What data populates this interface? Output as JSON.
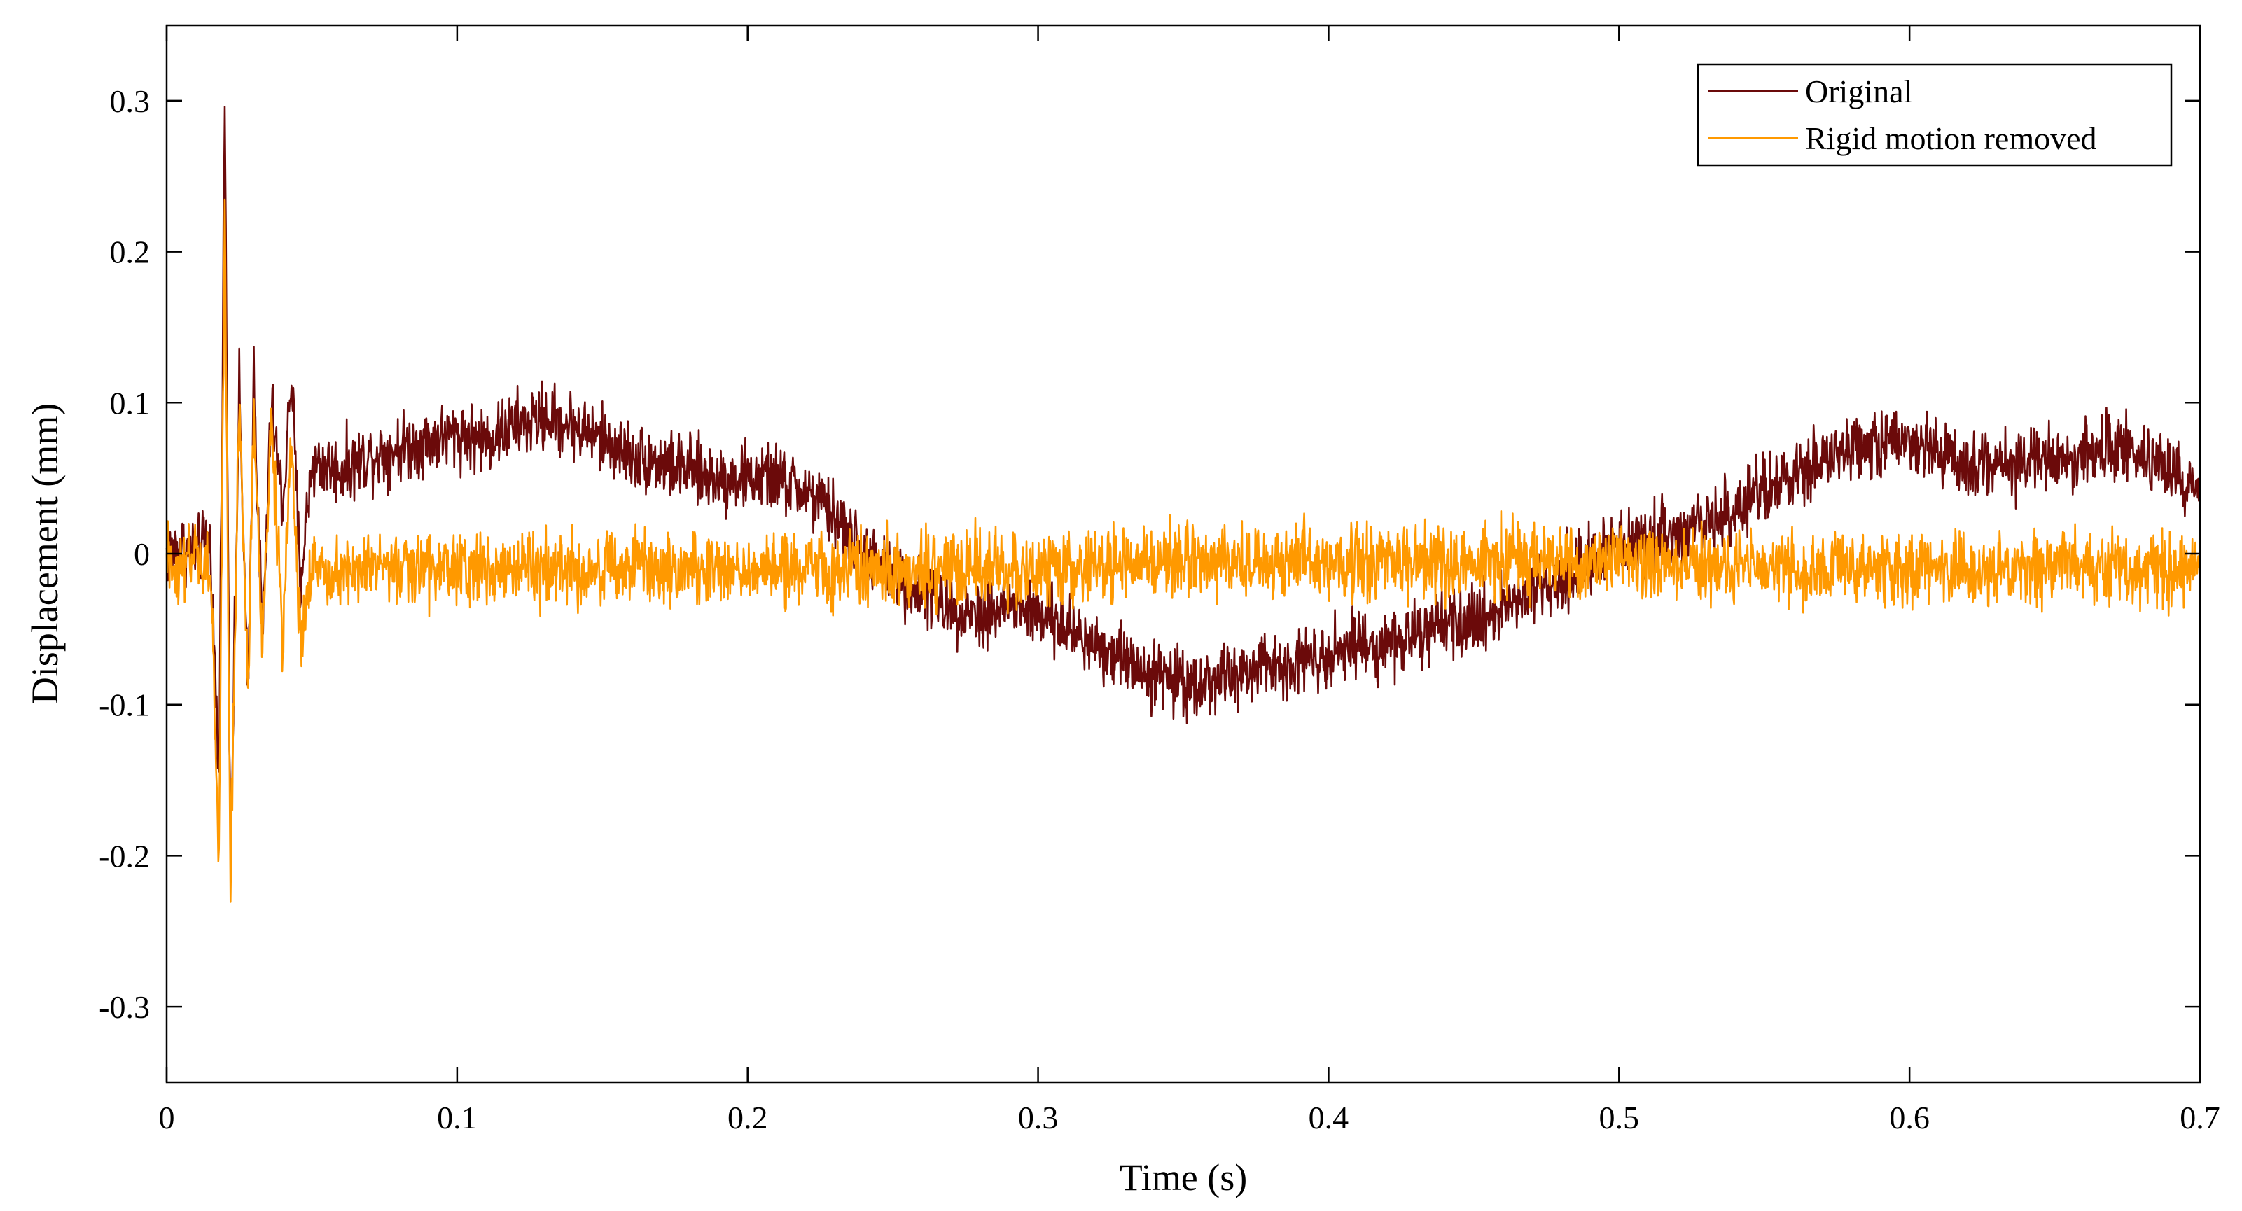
{
  "chart_data": {
    "type": "line",
    "title": "",
    "xlabel": "Time (s)",
    "ylabel": "Displacement (mm)",
    "xlim": [
      0,
      0.7
    ],
    "ylim": [
      -0.35,
      0.35
    ],
    "xticks": [
      0,
      0.1,
      0.2,
      0.3,
      0.4,
      0.5,
      0.6,
      0.7
    ],
    "xtick_labels": [
      "0",
      "0.1",
      "0.2",
      "0.3",
      "0.4",
      "0.5",
      "0.6",
      "0.7"
    ],
    "yticks": [
      0.3,
      0.2,
      0.1,
      0,
      -0.1,
      -0.2,
      -0.3
    ],
    "ytick_labels": [
      "0.3",
      "0.2",
      "0.1",
      "0",
      "-0.1",
      "-0.2",
      "-0.3"
    ],
    "grid": false,
    "legend_position": "top-right",
    "series": [
      {
        "name": "Original",
        "color": "#6b0a0a",
        "x": [
          0,
          0.005,
          0.01,
          0.015,
          0.018,
          0.02,
          0.022,
          0.025,
          0.028,
          0.03,
          0.033,
          0.036,
          0.04,
          0.043,
          0.046,
          0.05,
          0.06,
          0.07,
          0.08,
          0.09,
          0.1,
          0.11,
          0.12,
          0.13,
          0.14,
          0.15,
          0.16,
          0.17,
          0.18,
          0.19,
          0.2,
          0.21,
          0.22,
          0.23,
          0.24,
          0.25,
          0.26,
          0.27,
          0.28,
          0.29,
          0.3,
          0.31,
          0.32,
          0.33,
          0.34,
          0.35,
          0.36,
          0.37,
          0.38,
          0.39,
          0.4,
          0.41,
          0.42,
          0.43,
          0.44,
          0.45,
          0.46,
          0.47,
          0.48,
          0.49,
          0.5,
          0.51,
          0.52,
          0.53,
          0.54,
          0.55,
          0.56,
          0.57,
          0.58,
          0.59,
          0.6,
          0.61,
          0.62,
          0.63,
          0.64,
          0.65,
          0.66,
          0.67,
          0.68,
          0.69,
          0.7
        ],
        "y": [
          0,
          0.005,
          0,
          0.01,
          -0.15,
          0.3,
          -0.2,
          0.11,
          -0.1,
          0.12,
          -0.06,
          0.1,
          0.03,
          0.12,
          -0.02,
          0.06,
          0.055,
          0.065,
          0.07,
          0.075,
          0.08,
          0.075,
          0.085,
          0.09,
          0.085,
          0.075,
          0.065,
          0.06,
          0.055,
          0.05,
          0.05,
          0.05,
          0.04,
          0.025,
          0,
          -0.015,
          -0.025,
          -0.035,
          -0.04,
          -0.035,
          -0.04,
          -0.05,
          -0.06,
          -0.07,
          -0.08,
          -0.085,
          -0.085,
          -0.08,
          -0.075,
          -0.07,
          -0.065,
          -0.06,
          -0.06,
          -0.055,
          -0.05,
          -0.045,
          -0.035,
          -0.025,
          -0.015,
          -0.005,
          0.005,
          0.01,
          0.015,
          0.02,
          0.03,
          0.04,
          0.05,
          0.06,
          0.07,
          0.075,
          0.07,
          0.065,
          0.06,
          0.06,
          0.06,
          0.065,
          0.065,
          0.07,
          0.065,
          0.055,
          0.04
        ]
      },
      {
        "name": "Rigid motion removed",
        "color": "#ff9900",
        "x": [
          0,
          0.005,
          0.01,
          0.015,
          0.018,
          0.02,
          0.022,
          0.025,
          0.028,
          0.03,
          0.033,
          0.036,
          0.04,
          0.043,
          0.046,
          0.05,
          0.1,
          0.15,
          0.2,
          0.25,
          0.3,
          0.35,
          0.4,
          0.45,
          0.5,
          0.55,
          0.6,
          0.65,
          0.7
        ],
        "y": [
          -0.005,
          -0.01,
          -0.005,
          -0.01,
          -0.2,
          0.22,
          -0.22,
          0.11,
          -0.1,
          0.1,
          -0.07,
          0.09,
          -0.06,
          0.08,
          -0.06,
          -0.01,
          -0.01,
          -0.01,
          -0.01,
          -0.01,
          -0.01,
          -0.005,
          -0.005,
          -0.005,
          -0.005,
          -0.01,
          -0.01,
          -0.01,
          -0.01
        ]
      }
    ]
  }
}
